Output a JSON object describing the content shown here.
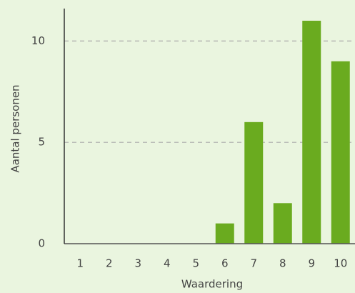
{
  "chart_data": {
    "type": "bar",
    "x_label": "Waardering",
    "y_label": "Aantal personen",
    "categories": [
      "1",
      "2",
      "3",
      "4",
      "5",
      "6",
      "7",
      "8",
      "9",
      "10"
    ],
    "values": [
      0,
      0,
      0,
      0,
      0,
      1,
      6,
      2,
      11,
      9
    ],
    "color": "#6aab1f",
    "ylim": [
      0,
      11.6
    ],
    "yticks": [
      0,
      5,
      10
    ],
    "grid": true
  }
}
